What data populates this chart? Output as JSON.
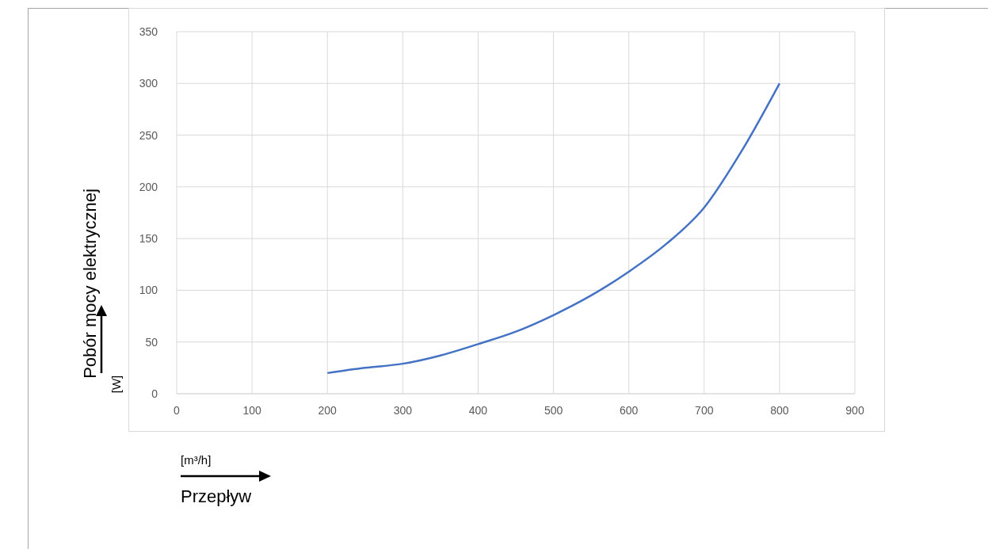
{
  "chart_data": {
    "type": "line",
    "xlabel": "Przepływ",
    "ylabel": "Pobór mocy elektrycznej",
    "annotations": [
      "[W]",
      "[m³/h]"
    ],
    "x": [
      200,
      250,
      300,
      350,
      400,
      450,
      500,
      550,
      600,
      650,
      700,
      750,
      800
    ],
    "series": [
      {
        "color": "#4472c4",
        "values": [
          20,
          25,
          29,
          37,
          48,
          60,
          76,
          95,
          118,
          145,
          180,
          235,
          300
        ]
      }
    ],
    "xlim": [
      0,
      900
    ],
    "xticks": [
      0,
      100,
      200,
      300,
      400,
      500,
      600,
      700,
      800,
      900
    ],
    "ylim": [
      0,
      350
    ],
    "yticks": [
      0,
      50,
      100,
      150,
      200,
      250,
      300,
      350
    ],
    "grid": true,
    "marker": "none",
    "line_style": "solid"
  }
}
